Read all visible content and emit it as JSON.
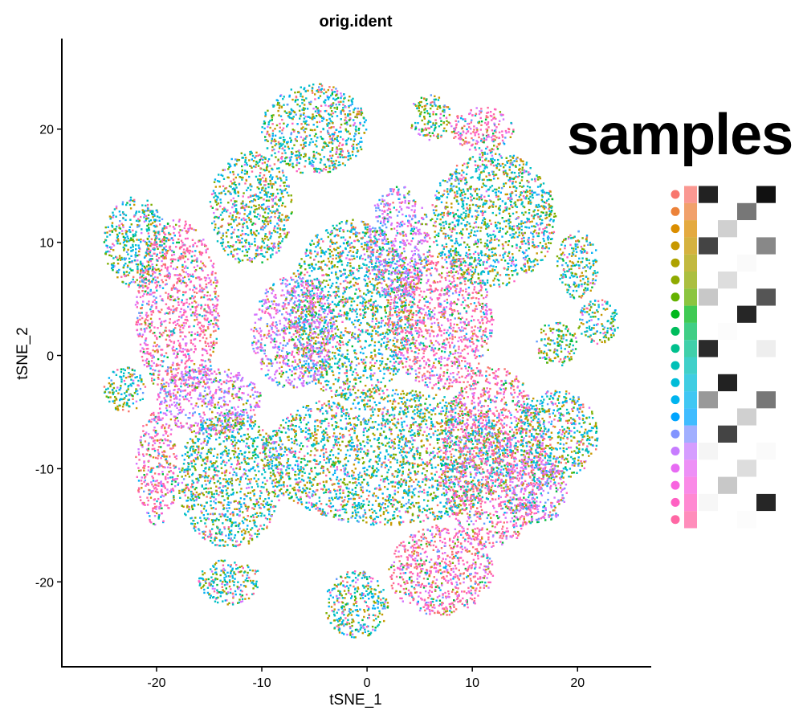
{
  "chart_data": {
    "type": "scatter",
    "title": "orig.ident",
    "xlabel": "tSNE_1",
    "ylabel": "tSNE_2",
    "xlim": [
      -29,
      27
    ],
    "ylim": [
      -27.5,
      28
    ],
    "xticks": [
      -20,
      -10,
      0,
      10,
      20
    ],
    "yticks": [
      -20,
      -10,
      0,
      10,
      20
    ],
    "grid": false,
    "legend_placement": "right",
    "legend_colors": [
      "#F8766D",
      "#EC8239",
      "#DB8E00",
      "#C79800",
      "#AEA200",
      "#8FAA00",
      "#64B200",
      "#00B81B",
      "#00BD5C",
      "#00C08D",
      "#00C0B7",
      "#00BCD8",
      "#00B4EF",
      "#00A5FF",
      "#8294FF",
      "#C77CFF",
      "#E76BF3",
      "#F863DF",
      "#FF61C3",
      "#FF67A4"
    ],
    "point_color_groups": [
      "#F8766D",
      "#C79800",
      "#7CAE00",
      "#00BA38",
      "#00BFC4",
      "#00B0F6",
      "#619CFF",
      "#D575FE",
      "#FF61C3",
      "#FF689F"
    ],
    "clusters": [
      {
        "cx": -1.5,
        "cy": 4,
        "rx": 6,
        "ry": 8,
        "mix": "cyan"
      },
      {
        "cx": 2,
        "cy": -9,
        "rx": 12,
        "ry": 6,
        "mix": "cyan"
      },
      {
        "cx": -13,
        "cy": -11,
        "rx": 5,
        "ry": 6,
        "mix": "cyan"
      },
      {
        "cx": 7,
        "cy": 3,
        "rx": 5,
        "ry": 6,
        "mix": "pink"
      },
      {
        "cx": 12,
        "cy": -9,
        "rx": 5,
        "ry": 8,
        "mix": "pink"
      },
      {
        "cx": 12,
        "cy": 12,
        "rx": 6,
        "ry": 6,
        "mix": "cyan"
      },
      {
        "cx": -18,
        "cy": 4,
        "rx": 4,
        "ry": 8,
        "mix": "pink"
      },
      {
        "cx": -7,
        "cy": 2,
        "rx": 4,
        "ry": 5,
        "mix": "violet"
      },
      {
        "cx": -15,
        "cy": -4,
        "rx": 5,
        "ry": 3,
        "mix": "violet"
      },
      {
        "cx": -5,
        "cy": 20,
        "rx": 5,
        "ry": 4,
        "mix": "cyan"
      },
      {
        "cx": -11,
        "cy": 13,
        "rx": 4,
        "ry": 5,
        "mix": "cyan"
      },
      {
        "cx": 7,
        "cy": -19,
        "rx": 5,
        "ry": 4,
        "mix": "pink"
      },
      {
        "cx": 18,
        "cy": -7,
        "rx": 4,
        "ry": 4,
        "mix": "cyan"
      },
      {
        "cx": -22,
        "cy": 10,
        "rx": 3,
        "ry": 4,
        "mix": "cyan"
      },
      {
        "cx": -20,
        "cy": -10,
        "rx": 2,
        "ry": 5,
        "mix": "pink"
      },
      {
        "cx": 22,
        "cy": 3,
        "rx": 2,
        "ry": 2,
        "mix": "cyan"
      },
      {
        "cx": -1,
        "cy": -22,
        "rx": 3,
        "ry": 3,
        "mix": "cyan"
      },
      {
        "cx": -13,
        "cy": -20,
        "rx": 3,
        "ry": 2,
        "mix": "cyan"
      },
      {
        "cx": 6,
        "cy": 21,
        "rx": 2,
        "ry": 2,
        "mix": "green"
      },
      {
        "cx": 11,
        "cy": 20,
        "rx": 3,
        "ry": 2,
        "mix": "pink"
      },
      {
        "cx": 20,
        "cy": 8,
        "rx": 2,
        "ry": 3,
        "mix": "cyan"
      },
      {
        "cx": 18,
        "cy": 1,
        "rx": 2,
        "ry": 2,
        "mix": "green"
      },
      {
        "cx": -23,
        "cy": -3,
        "rx": 2,
        "ry": 2,
        "mix": "cyan"
      },
      {
        "cx": 3,
        "cy": 10,
        "rx": 3,
        "ry": 5,
        "mix": "violet"
      },
      {
        "cx": 16,
        "cy": -12,
        "rx": 3,
        "ry": 3,
        "mix": "violet"
      }
    ]
  },
  "overlay_text": "samples"
}
